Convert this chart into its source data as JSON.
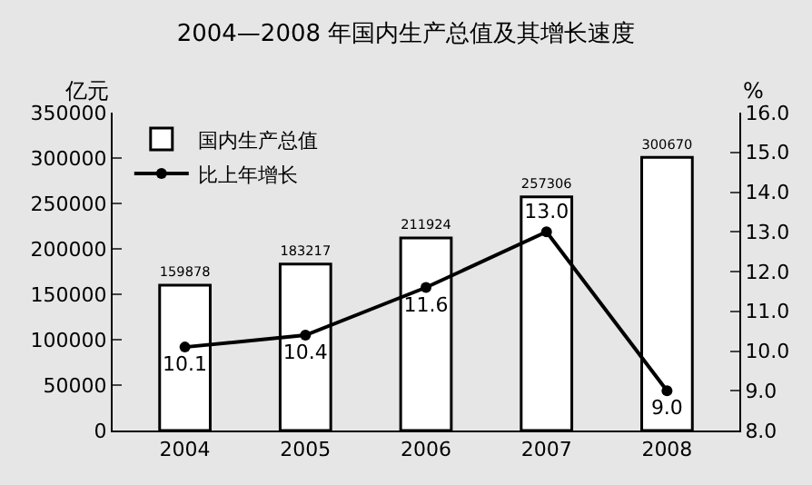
{
  "chart_data": {
    "type": "bar",
    "title": "2004—2008 年国内生产总值及其增长速度",
    "ylabel": "亿元",
    "y2label": "%",
    "categories": [
      "2004",
      "2005",
      "2006",
      "2007",
      "2008"
    ],
    "series": [
      {
        "name": "国内生产总值",
        "color": "#ffffff",
        "values": [
          159878,
          183217,
          211924,
          257306,
          300670
        ],
        "value_labels": [
          "159878",
          "183217",
          "211924",
          "257306",
          "300670"
        ]
      },
      {
        "name": "比上年增长",
        "type": "line",
        "axis": "y2",
        "color": "#000000",
        "values": [
          10.1,
          10.4,
          11.6,
          13.0,
          9.0
        ],
        "value_labels": [
          "10.1",
          "10.4",
          "11.6",
          "13.0",
          "9.0"
        ]
      }
    ],
    "ylim": [
      0,
      350000
    ],
    "yticks": [
      0,
      50000,
      100000,
      150000,
      200000,
      250000,
      300000,
      350000
    ],
    "y2lim": [
      8,
      16
    ],
    "y2ticks": [
      {
        "value": 8,
        "label": "8.0"
      },
      {
        "value": 9,
        "label": "9.0"
      },
      {
        "value": 10,
        "label": "10.0"
      },
      {
        "value": 11,
        "label": "11.0"
      },
      {
        "value": 12,
        "label": "12.0"
      },
      {
        "value": 13,
        "label": "13.0"
      },
      {
        "value": 14,
        "label": "14.0"
      },
      {
        "value": 15,
        "label": "15.0"
      },
      {
        "value": 16,
        "label": "16.0"
      }
    ],
    "grid": false,
    "legend": "top left",
    "marker": "circle",
    "line_style": "solid"
  }
}
